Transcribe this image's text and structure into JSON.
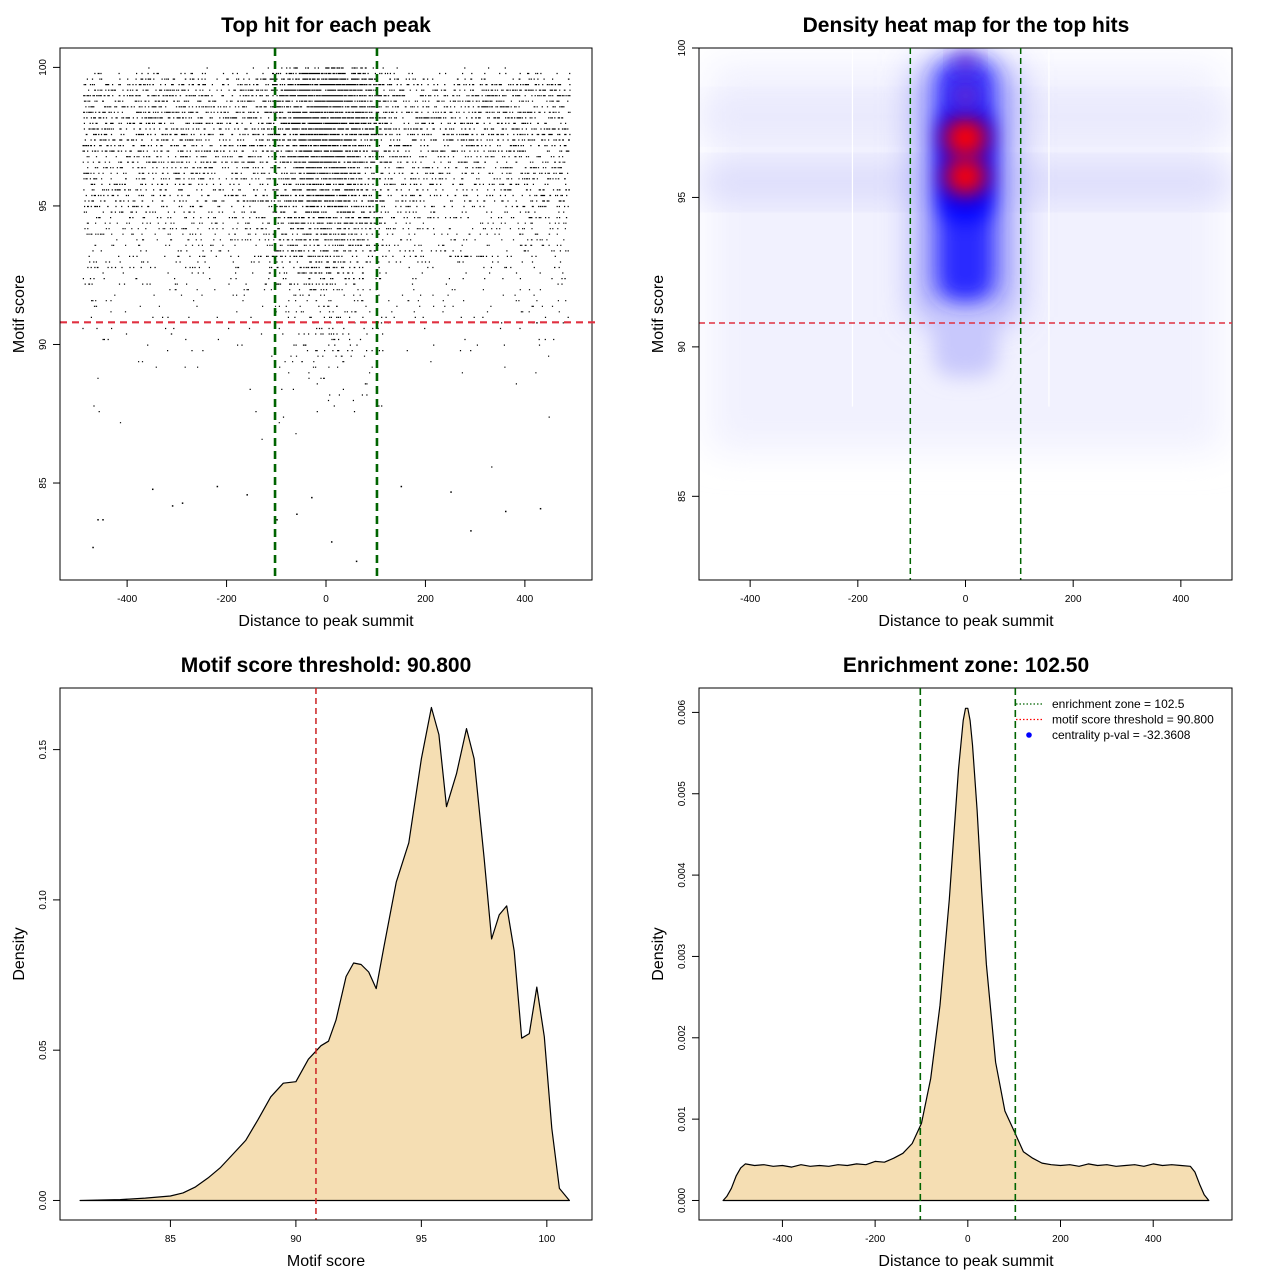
{
  "chart_data": [
    {
      "type": "scatter",
      "title": "Top hit for each peak",
      "xlabel": "Distance to peak summit",
      "ylabel": "Motif score",
      "xlim": [
        -535,
        535
      ],
      "ylim": [
        81.5,
        100.7
      ],
      "x_ticks": [
        -400,
        -200,
        0,
        200,
        400
      ],
      "y_ticks": [
        85,
        90,
        95,
        100
      ],
      "x_tick_labels": [
        "-400",
        "-200",
        "0",
        "200",
        "400"
      ],
      "y_tick_labels": [
        "85",
        "90",
        "95",
        "100"
      ],
      "threshold_line": 90.8,
      "zone_lines": [
        -102.5,
        102.5
      ],
      "outlier_points": [
        {
          "x": -470,
          "y": 82.7
        },
        {
          "x": -460,
          "y": 83.7
        },
        {
          "x": -450,
          "y": 83.7
        },
        {
          "x": -350,
          "y": 84.8
        },
        {
          "x": -290,
          "y": 84.3
        },
        {
          "x": -310,
          "y": 84.2
        },
        {
          "x": -100,
          "y": 83.7
        },
        {
          "x": -60,
          "y": 83.9
        },
        {
          "x": 10,
          "y": 82.9
        },
        {
          "x": 60,
          "y": 82.2
        },
        {
          "x": 290,
          "y": 83.3
        },
        {
          "x": 360,
          "y": 84.0
        },
        {
          "x": 430,
          "y": 84.1
        },
        {
          "x": 250,
          "y": 84.7
        },
        {
          "x": -220,
          "y": 84.9
        },
        {
          "x": -160,
          "y": 84.6
        },
        {
          "x": 150,
          "y": 84.9
        },
        {
          "x": -30,
          "y": 84.5
        }
      ]
    },
    {
      "type": "heatmap",
      "title": "Density heat map for the top hits",
      "xlabel": "Distance to peak summit",
      "ylabel": "Motif score",
      "xlim": [
        -495,
        495
      ],
      "ylim": [
        82.2,
        100.0
      ],
      "x_ticks": [
        -400,
        -200,
        0,
        200,
        400
      ],
      "y_ticks": [
        85,
        90,
        95,
        100
      ],
      "x_tick_labels": [
        "-400",
        "-200",
        "0",
        "200",
        "400"
      ],
      "y_tick_labels": [
        "85",
        "90",
        "95",
        "100"
      ],
      "threshold_line": 90.8,
      "zone_lines": [
        -102.5,
        102.5
      ],
      "hotspots": [
        {
          "score": 97.0,
          "level": 1.0
        },
        {
          "score": 95.7,
          "level": 0.95
        },
        {
          "score": 98.4,
          "level": 0.55
        },
        {
          "score": 99.5,
          "level": 0.4
        }
      ],
      "colors": [
        "#ffffff",
        "#0000ff",
        "#ff0000"
      ]
    },
    {
      "type": "area",
      "title": "Motif score threshold: 90.800",
      "xlabel": "Motif score",
      "ylabel": "Density",
      "xlim": [
        80.6,
        101.8
      ],
      "ylim": [
        -0.0065,
        0.1705
      ],
      "x_ticks": [
        85,
        90,
        95,
        100
      ],
      "y_ticks": [
        0.0,
        0.05,
        0.1,
        0.15
      ],
      "x_tick_labels": [
        "85",
        "90",
        "95",
        "100"
      ],
      "y_tick_labels": [
        "0.00",
        "0.05",
        "0.10",
        "0.15"
      ],
      "threshold_line": 90.8,
      "fill": "#f5deb3",
      "x": [
        81.4,
        83,
        84,
        85,
        85.5,
        86,
        86.5,
        87,
        87.5,
        88,
        88.5,
        89,
        89.5,
        90,
        90.5,
        91,
        91.3,
        91.6,
        92,
        92.3,
        92.6,
        92.9,
        93.2,
        93.5,
        94,
        94.5,
        95,
        95.4,
        95.7,
        96,
        96.4,
        96.8,
        97.1,
        97.5,
        97.8,
        98.1,
        98.4,
        98.7,
        99,
        99.3,
        99.6,
        99.9,
        100.2,
        100.5,
        100.9
      ],
      "y": [
        0.0,
        0.0003,
        0.0008,
        0.0015,
        0.0025,
        0.0045,
        0.0075,
        0.011,
        0.0155,
        0.02,
        0.027,
        0.0345,
        0.039,
        0.0395,
        0.047,
        0.0515,
        0.053,
        0.06,
        0.0745,
        0.079,
        0.0785,
        0.076,
        0.0705,
        0.084,
        0.106,
        0.119,
        0.147,
        0.164,
        0.155,
        0.131,
        0.142,
        0.157,
        0.147,
        0.114,
        0.087,
        0.095,
        0.098,
        0.083,
        0.054,
        0.0555,
        0.071,
        0.0545,
        0.024,
        0.004,
        0.0
      ]
    },
    {
      "type": "area",
      "title": "Enrichment zone: 102.50",
      "xlabel": "Distance to peak summit",
      "ylabel": "Density",
      "xlim": [
        -580,
        570
      ],
      "ylim": [
        -0.00024,
        0.0063
      ],
      "x_ticks": [
        -400,
        -200,
        0,
        200,
        400
      ],
      "y_ticks": [
        0.0,
        0.001,
        0.002,
        0.003,
        0.004,
        0.005,
        0.006
      ],
      "x_tick_labels": [
        "-400",
        "-200",
        "0",
        "200",
        "400"
      ],
      "y_tick_labels": [
        "0.000",
        "0.001",
        "0.002",
        "0.003",
        "0.004",
        "0.005",
        "0.006"
      ],
      "zone_lines": [
        -102.5,
        102.5
      ],
      "fill": "#f5deb3",
      "x": [
        -528,
        -520,
        -510,
        -500,
        -490,
        -480,
        -460,
        -440,
        -420,
        -400,
        -380,
        -360,
        -340,
        -320,
        -300,
        -280,
        -260,
        -240,
        -220,
        -200,
        -180,
        -160,
        -140,
        -120,
        -100,
        -80,
        -60,
        -40,
        -30,
        -20,
        -10,
        -5,
        0,
        5,
        10,
        20,
        30,
        40,
        60,
        80,
        100,
        120,
        140,
        160,
        180,
        200,
        220,
        240,
        260,
        280,
        300,
        320,
        340,
        360,
        380,
        400,
        420,
        440,
        460,
        480,
        490,
        500,
        510,
        520
      ],
      "y": [
        0.0,
        5e-05,
        0.00015,
        0.0003,
        0.0004,
        0.00045,
        0.00043,
        0.00044,
        0.00042,
        0.00043,
        0.00041,
        0.00044,
        0.00042,
        0.00043,
        0.00042,
        0.00044,
        0.00043,
        0.00045,
        0.00044,
        0.00048,
        0.00047,
        0.00052,
        0.00058,
        0.0007,
        0.00095,
        0.0015,
        0.0024,
        0.0037,
        0.0045,
        0.0053,
        0.0059,
        0.00605,
        0.00605,
        0.0059,
        0.0056,
        0.0048,
        0.0038,
        0.0029,
        0.0017,
        0.0011,
        0.00085,
        0.0006,
        0.00052,
        0.00046,
        0.00044,
        0.00043,
        0.00044,
        0.00042,
        0.00045,
        0.00043,
        0.00044,
        0.00042,
        0.00043,
        0.00044,
        0.00042,
        0.00045,
        0.00043,
        0.00044,
        0.00043,
        0.00042,
        0.00035,
        0.0002,
        7e-05,
        0.0
      ],
      "legend": {
        "position": "top-right",
        "entries": [
          {
            "label": "enrichment zone = 102.5",
            "color": "#006400",
            "style": "dotted-line"
          },
          {
            "label": "motif score threshold = 90.800",
            "color": "#ff0000",
            "style": "dotted-line"
          },
          {
            "label": "centrality p-val = -32.3608",
            "color": "#0000ff",
            "style": "point"
          }
        ]
      }
    }
  ]
}
